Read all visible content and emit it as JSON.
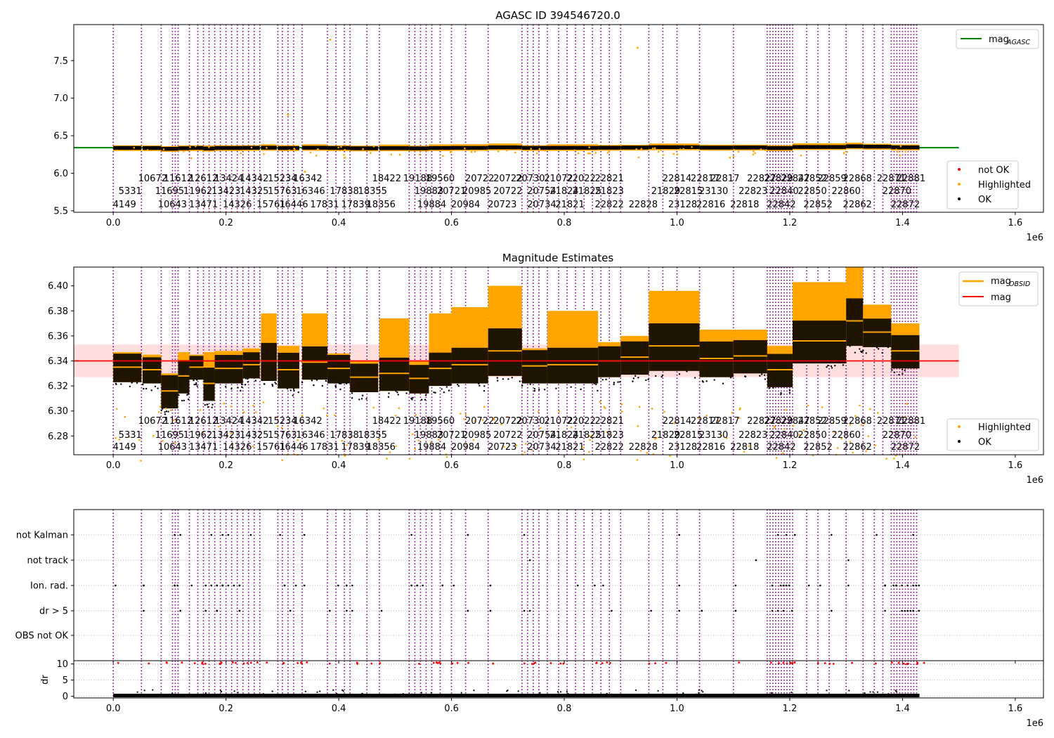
{
  "figure": {
    "panel_top_title": "AGASC ID 394546720.0",
    "panel_mid_title": "Magnitude Estimates"
  },
  "colors": {
    "ok": "#000000",
    "highlighted": "#FFA500",
    "not_ok": "#FF0000",
    "agasc_line": "#008000",
    "mag_line": "#FF0000",
    "mag_band": "#FFC8C8",
    "obsid_mag": "#FFA500",
    "obsid_lines": "#800080",
    "grid": "#B0B0B0"
  },
  "chart_data": [
    {
      "id": "top",
      "type": "scatter",
      "title": "AGASC ID 394546720.0",
      "xlim": [
        -70000,
        1650000
      ],
      "ylim": [
        5.48,
        7.98
      ],
      "x_ticks": [
        "0.0",
        "0.2",
        "0.4",
        "0.6",
        "0.8",
        "1.0",
        "1.2",
        "1.4",
        "1.6"
      ],
      "x_tick_values": [
        0,
        200000,
        400000,
        600000,
        800000,
        1000000,
        1200000,
        1400000,
        1600000
      ],
      "x_offset_label": "1e6",
      "y_ticks": [
        "5.5",
        "6.0",
        "6.5",
        "7.0",
        "7.5"
      ],
      "y_tick_values": [
        5.5,
        6.0,
        6.5,
        7.0,
        7.5
      ],
      "hlines": [
        {
          "name": "mag_AGASC",
          "y": 6.34,
          "x": [
            -70000,
            1500000
          ]
        }
      ],
      "legend_upper": [
        "mag_AGASC"
      ],
      "legend_lower": [
        "not OK",
        "Highlighted",
        "OK"
      ],
      "outliers": [
        [
          385000,
          7.78
        ],
        [
          930000,
          7.67
        ],
        [
          310000,
          6.78
        ],
        [
          340000,
          6.02
        ]
      ]
    },
    {
      "id": "mid",
      "type": "scatter",
      "title": "Magnitude Estimates",
      "xlim": [
        -70000,
        1650000
      ],
      "ylim": [
        6.265,
        6.415
      ],
      "x_ticks": [
        "0.0",
        "0.2",
        "0.4",
        "0.6",
        "0.8",
        "1.0",
        "1.2",
        "1.4",
        "1.6"
      ],
      "x_tick_values": [
        0,
        200000,
        400000,
        600000,
        800000,
        1000000,
        1200000,
        1400000,
        1600000
      ],
      "x_offset_label": "1e6",
      "y_ticks": [
        "6.28",
        "6.30",
        "6.32",
        "6.34",
        "6.36",
        "6.38",
        "6.40"
      ],
      "y_tick_values": [
        6.28,
        6.3,
        6.32,
        6.34,
        6.36,
        6.38,
        6.4
      ],
      "mag": 6.34,
      "mag_band": [
        6.327,
        6.353
      ],
      "legend_upper": [
        "mag_OBSID",
        "mag"
      ],
      "legend_lower": [
        "Highlighted",
        "OK"
      ],
      "segments": [
        {
          "x": [
            0,
            50000
          ],
          "mean": 6.335,
          "spread": 0.012,
          "top": 6.347
        },
        {
          "x": [
            52000,
            85000
          ],
          "mean": 6.333,
          "spread": 0.011,
          "top": 6.345
        },
        {
          "x": [
            85000,
            115000
          ],
          "mean": 6.316,
          "spread": 0.014,
          "top": 6.33
        },
        {
          "x": [
            115000,
            135000
          ],
          "mean": 6.328,
          "spread": 0.014,
          "top": 6.347
        },
        {
          "x": [
            135000,
            160000
          ],
          "mean": 6.335,
          "spread": 0.01,
          "top": 6.345
        },
        {
          "x": [
            160000,
            180000
          ],
          "mean": 6.322,
          "spread": 0.014,
          "top": 6.347
        },
        {
          "x": [
            180000,
            230000
          ],
          "mean": 6.334,
          "spread": 0.012,
          "top": 6.348
        },
        {
          "x": [
            230000,
            260000
          ],
          "mean": 6.337,
          "spread": 0.011,
          "top": 6.35
        },
        {
          "x": [
            262000,
            290000
          ],
          "mean": 6.34,
          "spread": 0.016,
          "top": 6.378
        },
        {
          "x": [
            292000,
            330000
          ],
          "mean": 6.333,
          "spread": 0.015,
          "top": 6.352
        },
        {
          "x": [
            335000,
            380000
          ],
          "mean": 6.339,
          "spread": 0.014,
          "top": 6.378
        },
        {
          "x": [
            380000,
            420000
          ],
          "mean": 6.334,
          "spread": 0.012,
          "top": 6.346
        },
        {
          "x": [
            420000,
            470000
          ],
          "mean": 6.327,
          "spread": 0.012,
          "top": 6.34
        },
        {
          "x": [
            472000,
            525000
          ],
          "mean": 6.33,
          "spread": 0.014,
          "top": 6.374
        },
        {
          "x": [
            525000,
            560000
          ],
          "mean": 6.326,
          "spread": 0.012,
          "top": 6.34
        },
        {
          "x": [
            560000,
            600000
          ],
          "mean": 6.334,
          "spread": 0.014,
          "top": 6.378
        },
        {
          "x": [
            600000,
            665000
          ],
          "mean": 6.337,
          "spread": 0.015,
          "top": 6.383
        },
        {
          "x": [
            665000,
            725000
          ],
          "mean": 6.348,
          "spread": 0.02,
          "top": 6.4
        },
        {
          "x": [
            725000,
            770000
          ],
          "mean": 6.336,
          "spread": 0.014,
          "top": 6.35
        },
        {
          "x": [
            770000,
            860000
          ],
          "mean": 6.337,
          "spread": 0.015,
          "top": 6.38
        },
        {
          "x": [
            860000,
            900000
          ],
          "mean": 6.34,
          "spread": 0.013,
          "top": 6.355
        },
        {
          "x": [
            900000,
            950000
          ],
          "mean": 6.343,
          "spread": 0.014,
          "top": 6.36
        },
        {
          "x": [
            950000,
            1040000
          ],
          "mean": 6.352,
          "spread": 0.02,
          "top": 6.396
        },
        {
          "x": [
            1040000,
            1100000
          ],
          "mean": 6.342,
          "spread": 0.015,
          "top": 6.365
        },
        {
          "x": [
            1100000,
            1160000
          ],
          "mean": 6.344,
          "spread": 0.014,
          "top": 6.365
        },
        {
          "x": [
            1160000,
            1205000
          ],
          "mean": 6.333,
          "spread": 0.014,
          "top": 6.352
        },
        {
          "x": [
            1205000,
            1300000
          ],
          "mean": 6.356,
          "spread": 0.018,
          "top": 6.403
        },
        {
          "x": [
            1300000,
            1330000
          ],
          "mean": 6.372,
          "spread": 0.02,
          "top": 6.415
        },
        {
          "x": [
            1330000,
            1380000
          ],
          "mean": 6.363,
          "spread": 0.012,
          "top": 6.385
        },
        {
          "x": [
            1380000,
            1430000
          ],
          "mean": 6.348,
          "spread": 0.014,
          "top": 6.37
        }
      ]
    },
    {
      "id": "flags",
      "type": "scatter",
      "xlim": [
        -70000,
        1650000
      ],
      "categories": [
        "OBS not OK",
        "dr > 5",
        "Ion. rad.",
        "not track",
        "not Kalman"
      ],
      "x_ticks": [
        "0.0",
        "0.2",
        "0.4",
        "0.6",
        "0.8",
        "1.0",
        "1.2",
        "1.4",
        "1.6"
      ],
      "x_tick_values": [
        0,
        200000,
        400000,
        600000,
        800000,
        1000000,
        1200000,
        1400000,
        1600000
      ],
      "x_offset_label": "1e6"
    },
    {
      "id": "dr",
      "type": "scatter",
      "ylabel": "dr",
      "xlim": [
        -70000,
        1650000
      ],
      "ylim": [
        -0.5,
        11
      ],
      "y_ticks": [
        "0",
        "5",
        "10"
      ],
      "y_tick_values": [
        0,
        5,
        10
      ],
      "x_ticks": [
        "0.0",
        "0.2",
        "0.4",
        "0.6",
        "0.8",
        "1.0",
        "1.2",
        "1.4",
        "1.6"
      ],
      "x_tick_values": [
        0,
        200000,
        400000,
        600000,
        800000,
        1000000,
        1200000,
        1400000,
        1600000
      ],
      "x_offset_label": "1e6"
    }
  ],
  "obsids": {
    "positions": [
      0,
      50000,
      85000,
      105000,
      110000,
      115000,
      135000,
      150000,
      160000,
      170000,
      180000,
      190000,
      200000,
      210000,
      220000,
      230000,
      240000,
      250000,
      260000,
      292000,
      300000,
      310000,
      320000,
      335000,
      380000,
      395000,
      410000,
      420000,
      450000,
      472000,
      525000,
      535000,
      545000,
      555000,
      565000,
      580000,
      600000,
      625000,
      665000,
      725000,
      735000,
      745000,
      755000,
      770000,
      790000,
      805000,
      820000,
      835000,
      850000,
      865000,
      880000,
      900000,
      950000,
      975000,
      1000000,
      1040000,
      1100000,
      1160000,
      1165000,
      1170000,
      1175000,
      1180000,
      1185000,
      1190000,
      1195000,
      1200000,
      1205000,
      1230000,
      1250000,
      1270000,
      1300000,
      1330000,
      1350000,
      1365000,
      1380000,
      1385000,
      1390000,
      1395000,
      1400000,
      1405000,
      1410000,
      1415000,
      1420000,
      1425000
    ],
    "labels_row1": [
      "10672",
      "11612",
      "12612",
      "13424",
      "14342",
      "15234",
      "16342",
      "18422",
      "19188",
      "19560",
      "20722",
      "20722",
      "20730",
      "21072",
      "22022",
      "22821",
      "22817",
      "22814",
      "22817",
      "22827",
      "22829",
      "22847",
      "22852",
      "22859",
      "22868",
      "22871",
      "22881"
    ],
    "labels_row1_x": [
      70000,
      115000,
      160000,
      205000,
      250000,
      300000,
      345000,
      485000,
      540000,
      580000,
      650000,
      700000,
      740000,
      790000,
      830000,
      880000,
      1085000,
      1000000,
      1050000,
      1150000,
      1180000,
      1210000,
      1240000,
      1275000,
      1320000,
      1380000,
      1415000
    ],
    "labels_row2": [
      "5331",
      "11695",
      "11962",
      "13423",
      "14325",
      "15763",
      "16346",
      "17838",
      "18355",
      "19883",
      "20721",
      "20985",
      "20722",
      "20754",
      "21824",
      "21825",
      "21823",
      "21829",
      "22815",
      "23130",
      "22823",
      "22840",
      "22850",
      "22860",
      "22870"
    ],
    "labels_row2_x": [
      30000,
      100000,
      150000,
      200000,
      250000,
      300000,
      350000,
      410000,
      460000,
      560000,
      600000,
      645000,
      700000,
      760000,
      800000,
      840000,
      880000,
      980000,
      1020000,
      1065000,
      1135000,
      1190000,
      1240000,
      1300000,
      1390000
    ],
    "labels_row3": [
      "4149",
      "10643",
      "13471",
      "14326",
      "15761",
      "16446",
      "17831",
      "17839",
      "18356",
      "19884",
      "20984",
      "20723",
      "20734",
      "21821",
      "22822",
      "22828",
      "23128",
      "22816",
      "22818",
      "22842",
      "22852",
      "22862",
      "22872"
    ],
    "labels_row3_x": [
      20000,
      105000,
      160000,
      220000,
      280000,
      320000,
      375000,
      430000,
      475000,
      565000,
      625000,
      690000,
      760000,
      810000,
      880000,
      940000,
      1010000,
      1060000,
      1120000,
      1185000,
      1250000,
      1320000,
      1405000
    ]
  }
}
